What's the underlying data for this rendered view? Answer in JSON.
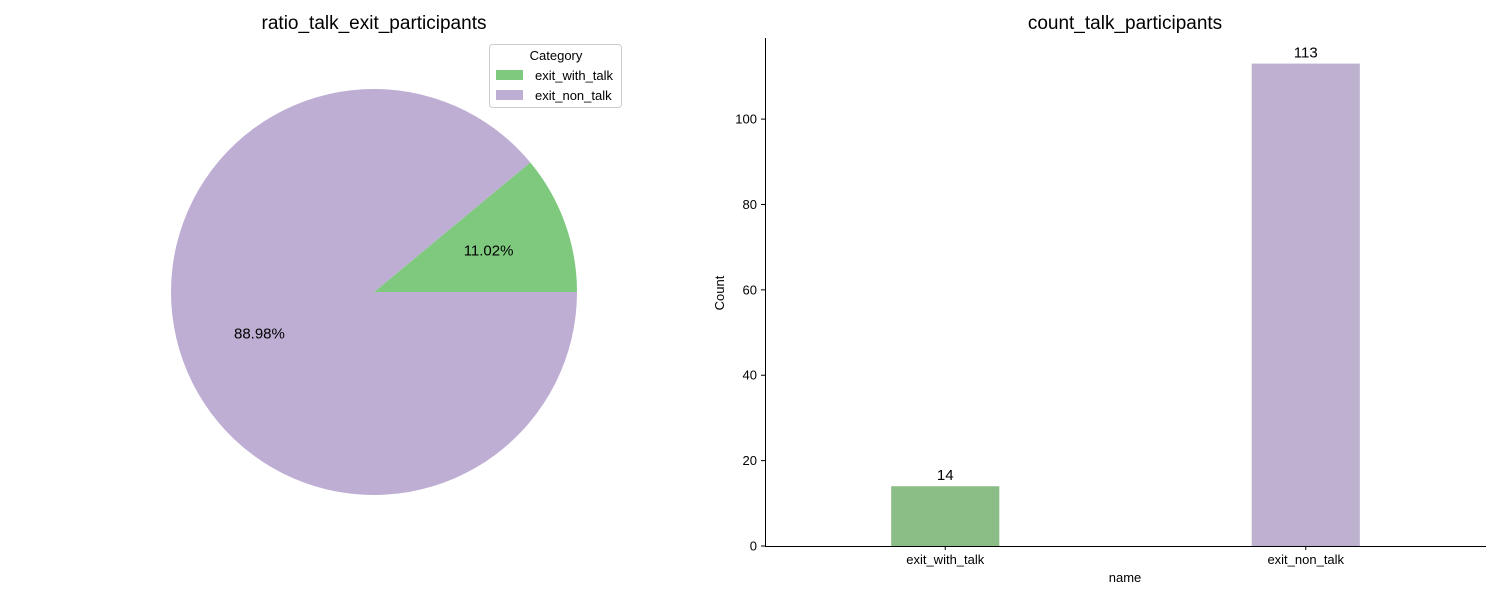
{
  "chart_data": [
    {
      "type": "pie",
      "title": "ratio_talk_exit_participants",
      "categories": [
        "exit_with_talk",
        "exit_non_talk"
      ],
      "values": [
        11.02,
        88.98
      ],
      "value_labels": [
        "11.02%",
        "88.98%"
      ],
      "colors": [
        "#7fc97f",
        "#beaed4"
      ],
      "legend": {
        "title": "Category",
        "placement": "top-right",
        "entries": [
          "exit_with_talk",
          "exit_non_talk"
        ]
      }
    },
    {
      "type": "bar",
      "title": "count_talk_participants",
      "categories": [
        "exit_with_talk",
        "exit_non_talk"
      ],
      "values": [
        14,
        113
      ],
      "value_labels": [
        "14",
        "113"
      ],
      "colors": [
        "#8bbe86",
        "#beb1cf"
      ],
      "xlabel": "name",
      "ylabel": "Count",
      "ylim": [
        0,
        119
      ],
      "yticks": [
        0,
        20,
        40,
        60,
        80,
        100
      ],
      "grid": false
    }
  ]
}
